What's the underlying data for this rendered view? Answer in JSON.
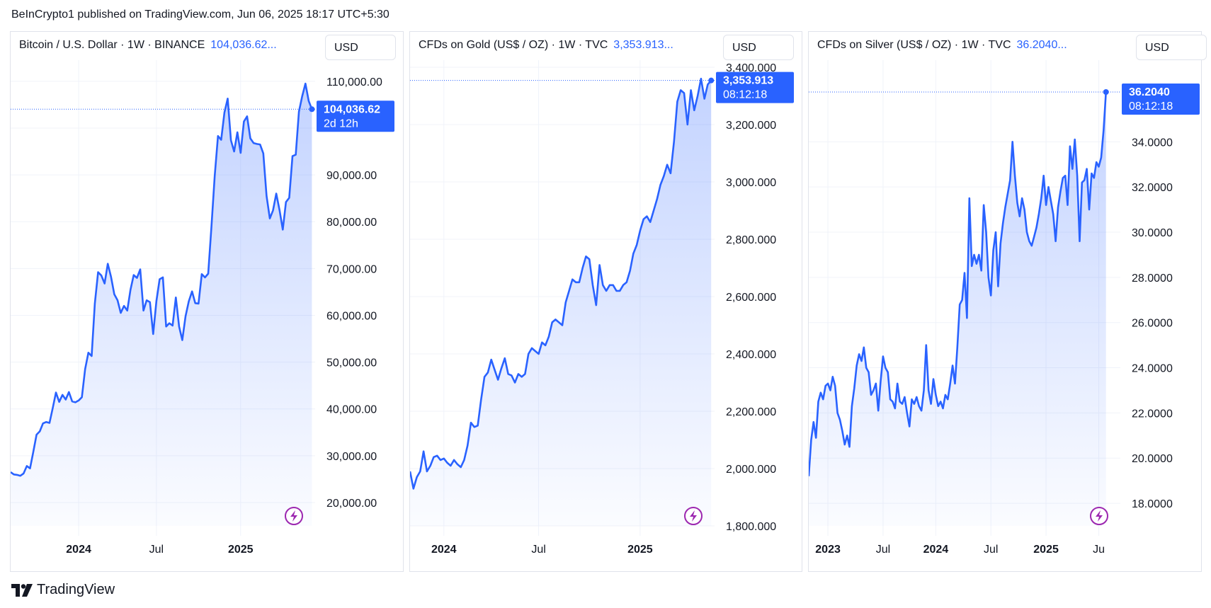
{
  "header": {
    "published": "BeInCrypto1 published on TradingView.com, Jun 06, 2025 18:17 UTC+5:30"
  },
  "footer": {
    "brand": "TradingView"
  },
  "colors": {
    "line": "#2962ff",
    "label_bg": "#2962ff",
    "bolt": "#9c27b0"
  },
  "chart_data": [
    {
      "type": "area",
      "title": "Bitcoin / U.S. Dollar · 1W · BINANCE",
      "last_text": "104,036.62...",
      "currency": "USD",
      "price_label": "104,036.62",
      "countdown": "2d 12h",
      "last_value": 104036.62,
      "ylim": [
        15000,
        113000
      ],
      "yticks": [
        20000,
        30000,
        40000,
        50000,
        60000,
        70000,
        80000,
        90000,
        100000,
        110000
      ],
      "ytick_labels": [
        "20,000.00",
        "30,000.00",
        "40,000.00",
        "50,000.00",
        "60,000.00",
        "70,000.00",
        "80,000.00",
        "90,000.00",
        "",
        "110,000.00"
      ],
      "xlim": [
        0,
        94
      ],
      "xticks": [
        {
          "x": 21,
          "label": "2024",
          "bold": true
        },
        {
          "x": 45,
          "label": "Jul",
          "bold": false
        },
        {
          "x": 71,
          "label": "2025",
          "bold": true
        }
      ],
      "values": [
        26500,
        26000,
        25900,
        25700,
        26200,
        27800,
        27300,
        30800,
        34500,
        35200,
        36900,
        37200,
        37000,
        40200,
        43500,
        41500,
        43000,
        42000,
        43600,
        41600,
        41400,
        41800,
        42500,
        48500,
        52000,
        51300,
        62500,
        69200,
        68500,
        66800,
        71000,
        68200,
        64500,
        63200,
        60500,
        62000,
        61000,
        65500,
        68600,
        68000,
        69800,
        61000,
        63200,
        62800,
        56000,
        63100,
        67700,
        68100,
        57600,
        58300,
        57800,
        63800,
        57600,
        54700,
        59800,
        63000,
        65100,
        62600,
        62500,
        68800,
        68100,
        68900,
        79000,
        89800,
        98300,
        97500,
        103300,
        106300,
        97400,
        95000,
        99100,
        94700,
        101400,
        102500,
        97800,
        96800,
        96600,
        96500,
        94600,
        85500,
        80700,
        82400,
        86000,
        82500,
        78300,
        84200,
        85100,
        94000,
        94300,
        103500,
        106800,
        109500,
        105800,
        104036.62
      ]
    },
    {
      "type": "area",
      "title": "CFDs on Gold (US$ / OZ) · 1W · TVC",
      "last_text": "3,353.913...",
      "currency": "USD",
      "price_label": "3,353.913",
      "countdown": "08:12:18",
      "last_value": 3353.913,
      "ylim": [
        1800,
        3400
      ],
      "yticks": [
        1800,
        2000,
        2200,
        2400,
        2600,
        2800,
        3000,
        3200,
        3400
      ],
      "ytick_labels": [
        "1,800.000",
        "2,000.000",
        "2,200.000",
        "2,400.000",
        "2,600.000",
        "2,800.000",
        "3,000.000",
        "3,200.000",
        "3,400.000"
      ],
      "xlim": [
        0,
        90
      ],
      "xticks": [
        {
          "x": 10,
          "label": "2024",
          "bold": true
        },
        {
          "x": 38,
          "label": "Jul",
          "bold": false
        },
        {
          "x": 68,
          "label": "2025",
          "bold": true
        }
      ],
      "values": [
        1990,
        1930,
        1970,
        1990,
        2060,
        1990,
        2010,
        2040,
        2045,
        2030,
        2035,
        2020,
        2010,
        2030,
        2015,
        2005,
        2030,
        2080,
        2160,
        2145,
        2150,
        2240,
        2320,
        2335,
        2380,
        2345,
        2310,
        2350,
        2385,
        2330,
        2325,
        2300,
        2330,
        2320,
        2330,
        2400,
        2420,
        2410,
        2400,
        2440,
        2430,
        2460,
        2510,
        2520,
        2510,
        2500,
        2580,
        2620,
        2660,
        2650,
        2650,
        2700,
        2740,
        2730,
        2640,
        2570,
        2710,
        2640,
        2620,
        2640,
        2640,
        2620,
        2620,
        2640,
        2650,
        2690,
        2750,
        2780,
        2830,
        2870,
        2880,
        2860,
        2900,
        2940,
        2990,
        3020,
        3060,
        3030,
        3140,
        3280,
        3320,
        3310,
        3200,
        3320,
        3250,
        3300,
        3360,
        3290,
        3340,
        3353.913
      ]
    },
    {
      "type": "area",
      "title": "CFDs on Silver (US$ / OZ) · 1W · TVC",
      "last_text": "36.2040...",
      "currency": "USD",
      "price_label": "36.2040",
      "countdown": "08:12:18",
      "last_value": 36.204,
      "ylim": [
        17,
        37.3
      ],
      "yticks": [
        18,
        20,
        22,
        24,
        26,
        28,
        30,
        32,
        34
      ],
      "ytick_labels": [
        "18.0000",
        "20.0000",
        "22.0000",
        "24.0000",
        "26.0000",
        "28.0000",
        "30.0000",
        "32.0000",
        "34.0000"
      ],
      "xlim": [
        0,
        130
      ],
      "xticks": [
        {
          "x": 8,
          "label": "2023",
          "bold": true
        },
        {
          "x": 31,
          "label": "Jul",
          "bold": false
        },
        {
          "x": 53,
          "label": "2024",
          "bold": true
        },
        {
          "x": 76,
          "label": "Jul",
          "bold": false
        },
        {
          "x": 99,
          "label": "2025",
          "bold": true
        },
        {
          "x": 121,
          "label": "Ju",
          "bold": false
        }
      ],
      "values": [
        19.2,
        20.8,
        21.6,
        20.9,
        22.5,
        22.9,
        22.6,
        23.2,
        23.3,
        23.0,
        23.6,
        23.2,
        22.0,
        21.7,
        21.2,
        20.6,
        21.0,
        20.5,
        22.3,
        23.1,
        24.1,
        24.6,
        24.3,
        24.9,
        24.0,
        23.8,
        22.8,
        23.0,
        23.3,
        22.1,
        23.4,
        24.5,
        24.0,
        23.8,
        22.6,
        22.5,
        22.2,
        23.3,
        22.5,
        22.4,
        22.7,
        22.0,
        21.4,
        22.6,
        22.4,
        22.7,
        22.3,
        22.1,
        23.0,
        25.0,
        23.0,
        22.4,
        23.5,
        22.8,
        22.3,
        22.5,
        22.2,
        22.8,
        22.6,
        23.3,
        24.1,
        23.3,
        24.9,
        26.8,
        27.0,
        28.2,
        26.2,
        31.5,
        28.5,
        29.0,
        28.6,
        29.0,
        28.3,
        31.2,
        30.0,
        28.0,
        27.2,
        29.2,
        30.0,
        27.6,
        29.5,
        30.4,
        31.1,
        31.7,
        32.3,
        34.0,
        32.5,
        31.3,
        30.7,
        31.5,
        31.0,
        30.0,
        29.6,
        29.4,
        29.8,
        30.2,
        30.8,
        31.5,
        32.5,
        31.2,
        32.0,
        31.4,
        30.8,
        29.6,
        31.1,
        31.8,
        32.4,
        32.5,
        31.2,
        33.8,
        32.8,
        34.1,
        32.5,
        29.6,
        32.2,
        32.3,
        32.8,
        31.0,
        32.6,
        32.4,
        33.1,
        32.9,
        33.3,
        34.5,
        36.204
      ]
    }
  ]
}
